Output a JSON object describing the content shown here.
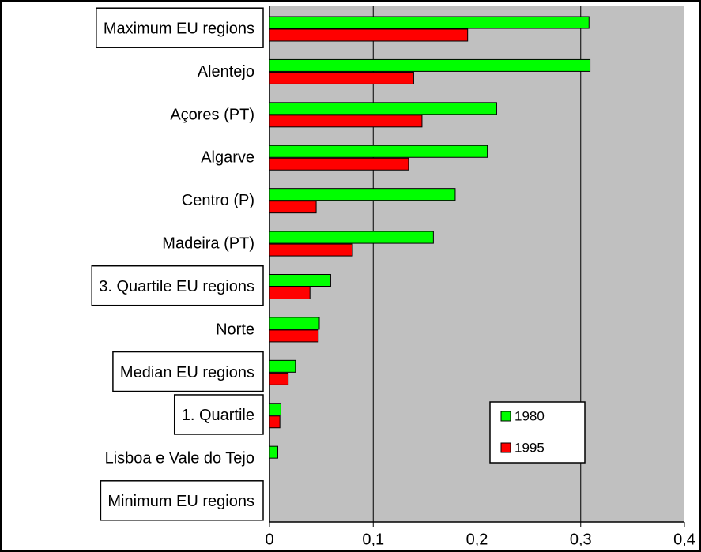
{
  "chart_data": {
    "type": "barh",
    "categories": [
      "Maximum EU regions",
      "Alentejo",
      "Açores  (PT)",
      "Algarve",
      "Centro (P)",
      "Madeira  (PT)",
      "3. Quartile EU regions",
      "Norte",
      "Median EU regions",
      "1. Quartile",
      "Lisboa e Vale do Tejo",
      "Minimum EU regions"
    ],
    "series": [
      {
        "name": "1980",
        "color": "#00ff00",
        "values": [
          0.308,
          0.309,
          0.219,
          0.21,
          0.179,
          0.158,
          0.059,
          0.048,
          0.025,
          0.011,
          0.008,
          0
        ]
      },
      {
        "name": "1995",
        "color": "#ff0000",
        "values": [
          0.191,
          0.139,
          0.147,
          0.134,
          0.045,
          0.08,
          0.039,
          0.047,
          0.018,
          0.01,
          0,
          0
        ]
      }
    ],
    "xlim": [
      0,
      0.4
    ],
    "xticks": [
      0,
      {
        "value": 0.1,
        "label": "0,1"
      },
      {
        "value": 0.2,
        "label": "0,2"
      },
      {
        "value": 0.3,
        "label": "0,3"
      },
      {
        "value": 0.4,
        "label": "0,4"
      }
    ],
    "grid": true,
    "legend": "lower right"
  }
}
